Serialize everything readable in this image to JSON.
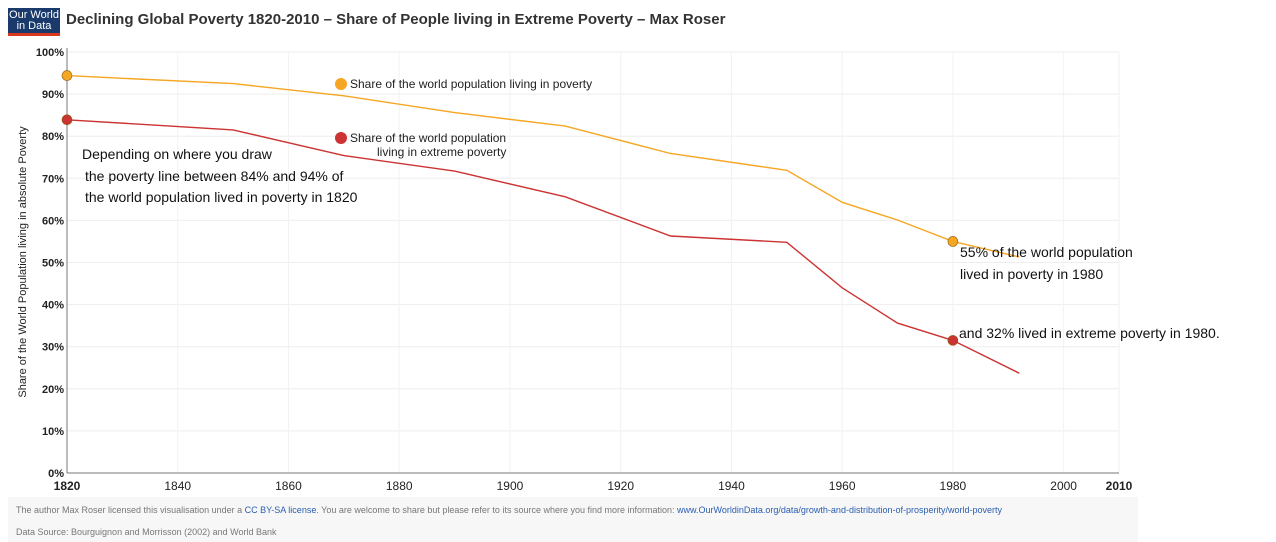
{
  "header": {
    "logo_line1": "Our World",
    "logo_line2": "in Data",
    "title": "Declining Global Poverty 1820-2010 – Share of People living in Extreme Poverty – Max Roser"
  },
  "footer": {
    "credit_prefix": "The author Max Roser licensed this visualisation under a ",
    "license_link": "CC BY-SA license",
    "credit_middle": ". You are welcome to share but please refer to its source where you find more information: ",
    "source_link": "www.OurWorldinData.org/data/growth-and-distribution-of-prosperity/world-poverty",
    "data_source": "Data Source: Bourguignon and Morrisson (2002) and World Bank"
  },
  "chart_data": {
    "type": "line",
    "title": "Declining Global Poverty 1820-2010 – Share of People living in Extreme Poverty – Max Roser",
    "xlabel": "",
    "ylabel": "Share of the World Population living in absolute Poverty",
    "xlim": [
      1820,
      2010
    ],
    "ylim": [
      0,
      100
    ],
    "x_ticks": [
      "1820",
      "1840",
      "1860",
      "1880",
      "1900",
      "1920",
      "1940",
      "1960",
      "1980",
      "2000",
      "2010"
    ],
    "y_ticks": [
      "0%",
      "10%",
      "20%",
      "30%",
      "40%",
      "50%",
      "60%",
      "70%",
      "80%",
      "90%",
      "100%"
    ],
    "grid": true,
    "series": [
      {
        "name": "Share of the world population living in poverty",
        "color": "#f5a623",
        "x": [
          1820,
          1850,
          1870,
          1890,
          1910,
          1929,
          1950,
          1960,
          1970,
          1980,
          1992
        ],
        "y": [
          94.4,
          92.5,
          89.6,
          85.6,
          82.4,
          75.9,
          71.9,
          64.3,
          60.1,
          55.0,
          51.3
        ]
      },
      {
        "name": "Share of the world population living in extreme poverty",
        "color": "#cc3333",
        "x": [
          1820,
          1850,
          1870,
          1890,
          1910,
          1929,
          1950,
          1960,
          1970,
          1980,
          1992
        ],
        "y": [
          83.9,
          81.5,
          75.4,
          71.7,
          65.6,
          56.3,
          54.8,
          44.0,
          35.6,
          31.5,
          23.7
        ]
      }
    ],
    "legend": [
      {
        "label": "Share of the world population living in poverty",
        "color": "#f5a623"
      },
      {
        "label_line1": "Share of the world population",
        "label_line2": "living in extreme poverty",
        "color": "#cc3333"
      }
    ],
    "highlights": [
      {
        "series": 0,
        "x": 1820,
        "y": 94.4
      },
      {
        "series": 1,
        "x": 1820,
        "y": 83.9
      },
      {
        "series": 0,
        "x": 1980,
        "y": 55.0
      },
      {
        "series": 1,
        "x": 1980,
        "y": 31.5
      }
    ],
    "annotations": {
      "left_line1": "Depending on where you draw",
      "left_line2": "the poverty line between 84% and 94% of",
      "left_line3": "the world population lived in poverty in 1820",
      "right1_line1": "55% of the world population",
      "right1_line2": "lived in poverty in 1980",
      "right2": "and 32% lived in extreme poverty in 1980."
    }
  }
}
